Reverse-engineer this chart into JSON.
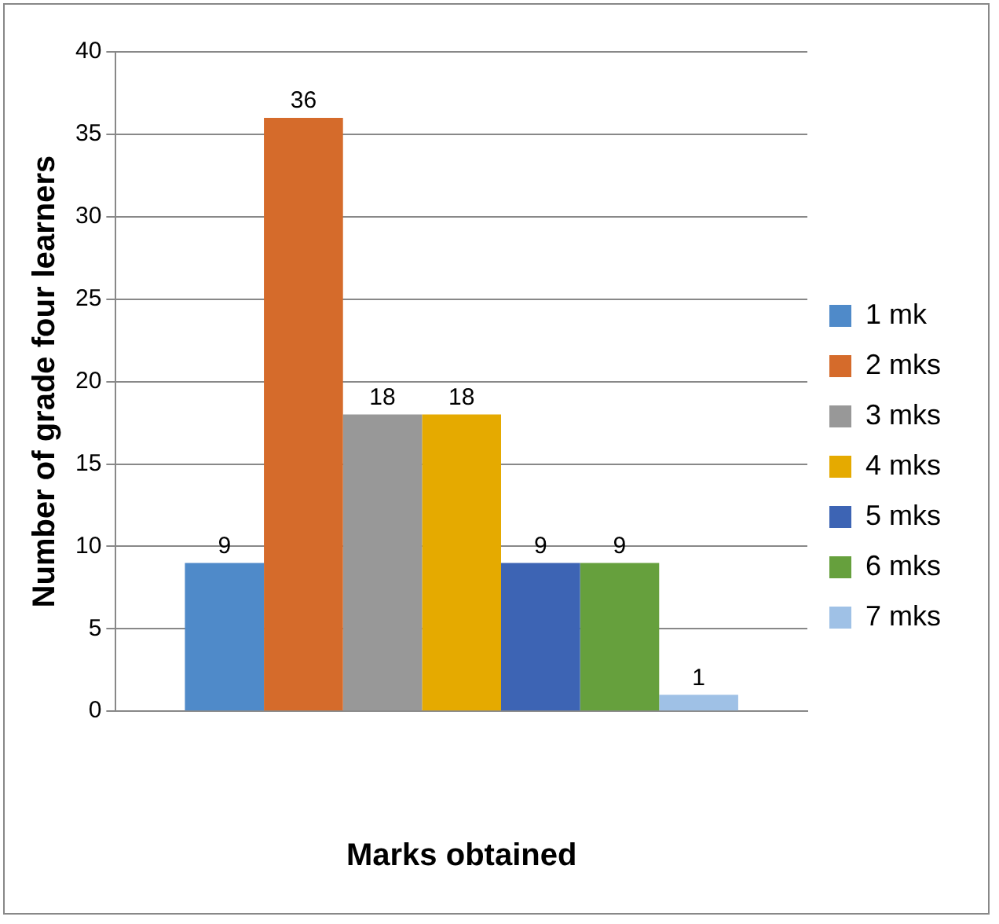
{
  "chart_data": {
    "type": "bar",
    "xlabel": "Marks obtained",
    "ylabel": "Number of grade four learners",
    "categories": [
      null
    ],
    "series": [
      {
        "name": "1 mk",
        "color": "#4f8ac9",
        "values": [
          9
        ]
      },
      {
        "name": "2 mks",
        "color": "#d56b2b",
        "values": [
          36
        ]
      },
      {
        "name": "3 mks",
        "color": "#989898",
        "values": [
          18
        ]
      },
      {
        "name": "4 mks",
        "color": "#e5aa00",
        "values": [
          18
        ]
      },
      {
        "name": "5 mks",
        "color": "#3d64b4",
        "values": [
          9
        ]
      },
      {
        "name": "6 mks",
        "color": "#66a03d",
        "values": [
          9
        ]
      },
      {
        "name": "7 mks",
        "color": "#9fc1e6",
        "values": [
          1
        ]
      }
    ],
    "ylim": [
      0,
      40
    ],
    "yticks": [
      0,
      5,
      10,
      15,
      20,
      25,
      30,
      35,
      40
    ],
    "grid": "y",
    "legend": "right",
    "data_labels": true
  }
}
